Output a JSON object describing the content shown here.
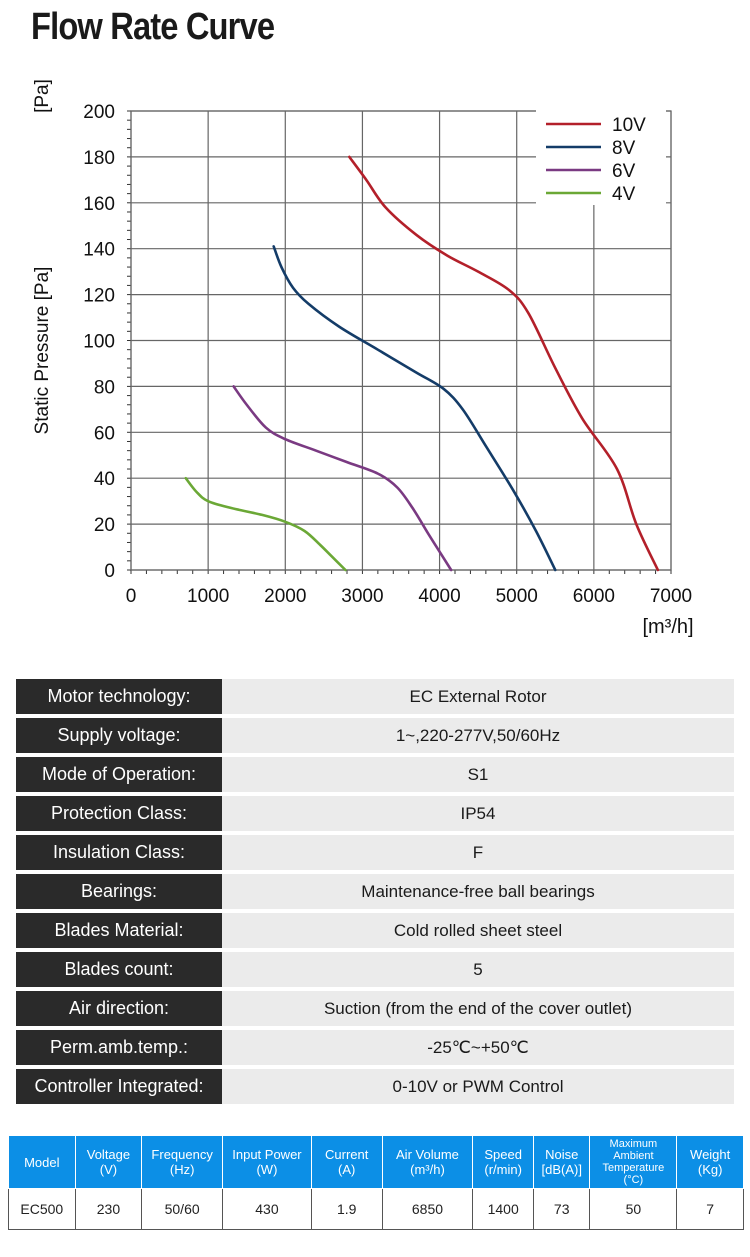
{
  "page_title": "Flow Rate Curve",
  "chart_data": {
    "type": "line",
    "title": "",
    "xlabel": "[m³/h]",
    "ylabel": "Static Pressure [Pa]",
    "y_unit_label": "[Pa]",
    "xlim": [
      0,
      7000
    ],
    "ylim": [
      0,
      200
    ],
    "x_ticks": [
      0,
      1000,
      2000,
      3000,
      4000,
      5000,
      6000,
      7000
    ],
    "y_ticks": [
      0,
      20,
      40,
      60,
      80,
      100,
      120,
      140,
      160,
      180,
      200
    ],
    "grid": true,
    "legend_position": "top-right",
    "series": [
      {
        "name": "10V",
        "color": "#b3202a",
        "points": [
          [
            2830,
            180
          ],
          [
            3050,
            170
          ],
          [
            3300,
            158
          ],
          [
            3700,
            146
          ],
          [
            4100,
            137
          ],
          [
            4500,
            130
          ],
          [
            4900,
            122
          ],
          [
            5150,
            112
          ],
          [
            5500,
            88
          ],
          [
            5850,
            66
          ],
          [
            6300,
            44
          ],
          [
            6550,
            20
          ],
          [
            6830,
            0
          ]
        ]
      },
      {
        "name": "8V",
        "color": "#143c68",
        "points": [
          [
            1850,
            141
          ],
          [
            1950,
            132
          ],
          [
            2100,
            123
          ],
          [
            2300,
            116
          ],
          [
            2700,
            106
          ],
          [
            3200,
            96
          ],
          [
            3700,
            86
          ],
          [
            4050,
            79
          ],
          [
            4300,
            70
          ],
          [
            4600,
            54
          ],
          [
            4950,
            35
          ],
          [
            5250,
            17
          ],
          [
            5500,
            0
          ]
        ]
      },
      {
        "name": "6V",
        "color": "#7a3a82",
        "points": [
          [
            1330,
            80
          ],
          [
            1500,
            72
          ],
          [
            1750,
            62
          ],
          [
            2000,
            57
          ],
          [
            2400,
            52
          ],
          [
            2800,
            47
          ],
          [
            3200,
            42
          ],
          [
            3450,
            36
          ],
          [
            3650,
            27
          ],
          [
            3850,
            16
          ],
          [
            4000,
            8
          ],
          [
            4150,
            0
          ]
        ]
      },
      {
        "name": "4V",
        "color": "#6ba836",
        "points": [
          [
            710,
            40
          ],
          [
            850,
            34
          ],
          [
            1000,
            30
          ],
          [
            1300,
            27
          ],
          [
            1700,
            24
          ],
          [
            2000,
            21
          ],
          [
            2250,
            17
          ],
          [
            2450,
            11
          ],
          [
            2600,
            6
          ],
          [
            2780,
            0
          ]
        ]
      }
    ]
  },
  "specs": [
    {
      "label": "Motor technology:",
      "value": "EC External Rotor"
    },
    {
      "label": "Supply voltage:",
      "value": "1~,220-277V,50/60Hz"
    },
    {
      "label": "Mode of Operation:",
      "value": "S1"
    },
    {
      "label": "Protection Class:",
      "value": "IP54"
    },
    {
      "label": "Insulation Class:",
      "value": "F"
    },
    {
      "label": "Bearings:",
      "value": "Maintenance-free ball bearings"
    },
    {
      "label": "Blades Material:",
      "value": "Cold rolled sheet steel"
    },
    {
      "label": "Blades count:",
      "value": "5"
    },
    {
      "label": "Air direction:",
      "value": "Suction (from the end of the cover outlet)"
    },
    {
      "label": "Perm.amb.temp.:",
      "value": "-25℃~+50℃"
    },
    {
      "label": "Controller Integrated:",
      "value": "0-10V or PWM Control"
    }
  ],
  "model_table": {
    "headers": [
      {
        "line1": "Model",
        "line2": ""
      },
      {
        "line1": "Voltage",
        "line2": "(V)"
      },
      {
        "line1": "Frequency",
        "line2": "(Hz)"
      },
      {
        "line1": "Input Power",
        "line2": "(W)"
      },
      {
        "line1": "Current",
        "line2": "(A)"
      },
      {
        "line1": "Air Volume",
        "line2": "(m³/h)"
      },
      {
        "line1": "Speed",
        "line2": "(r/min)"
      },
      {
        "line1": "Noise",
        "line2": "[dB(A)]"
      },
      {
        "line1": "Maximum Ambient Temperature",
        "line2": "(°C)"
      },
      {
        "line1": "Weight",
        "line2": "(Kg)"
      }
    ],
    "row": [
      "EC500",
      "230",
      "50/60",
      "430",
      "1.9",
      "6850",
      "1400",
      "73",
      "50",
      "7"
    ]
  }
}
